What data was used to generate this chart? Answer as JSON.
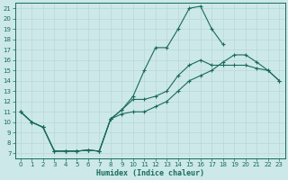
{
  "xlabel": "Humidex (Indice chaleur)",
  "bg_color": "#cce8e8",
  "grid_color": "#aacccc",
  "line_color": "#1a6b5a",
  "xlim": [
    -0.5,
    23.5
  ],
  "ylim": [
    6.5,
    21.5
  ],
  "xticks": [
    0,
    1,
    2,
    3,
    4,
    5,
    6,
    7,
    8,
    9,
    10,
    11,
    12,
    13,
    14,
    15,
    16,
    17,
    18,
    19,
    20,
    21,
    22,
    23
  ],
  "yticks": [
    7,
    8,
    9,
    10,
    11,
    12,
    13,
    14,
    15,
    16,
    17,
    18,
    19,
    20,
    21
  ],
  "line1_x": [
    0,
    1,
    2,
    3,
    4,
    5,
    6,
    7,
    8,
    9,
    10,
    11,
    12,
    13,
    14,
    15,
    16,
    17,
    18,
    19,
    20
  ],
  "line1_y": [
    11,
    10,
    9.5,
    7.2,
    7.2,
    7.2,
    7.3,
    7.2,
    10.3,
    11.2,
    12.5,
    15.0,
    17.2,
    17.2,
    19.0,
    21.0,
    21.2,
    19.0,
    17.5,
    null,
    null
  ],
  "line2_x": [
    0,
    1,
    2,
    3,
    4,
    5,
    6,
    7,
    8,
    9,
    10,
    11,
    12,
    13,
    14,
    15,
    16,
    17,
    18,
    19,
    20,
    21,
    22,
    23
  ],
  "line2_y": [
    11,
    10,
    9.5,
    7.2,
    7.2,
    7.2,
    7.3,
    7.2,
    10.3,
    11.2,
    12.2,
    12.2,
    12.5,
    13.0,
    14.5,
    15.5,
    16.0,
    15.5,
    15.5,
    15.5,
    15.5,
    15.2,
    15.0,
    14.0
  ],
  "line3_x": [
    0,
    1,
    2,
    3,
    4,
    5,
    6,
    7,
    8,
    9,
    10,
    11,
    12,
    13,
    14,
    15,
    16,
    17,
    18,
    19,
    20,
    21,
    22,
    23
  ],
  "line3_y": [
    11,
    10,
    9.5,
    7.2,
    7.2,
    7.2,
    7.3,
    7.2,
    10.3,
    10.8,
    11.0,
    11.0,
    11.5,
    12.0,
    13.0,
    14.0,
    14.5,
    15.0,
    15.8,
    16.5,
    16.5,
    15.8,
    15.0,
    14.0
  ]
}
